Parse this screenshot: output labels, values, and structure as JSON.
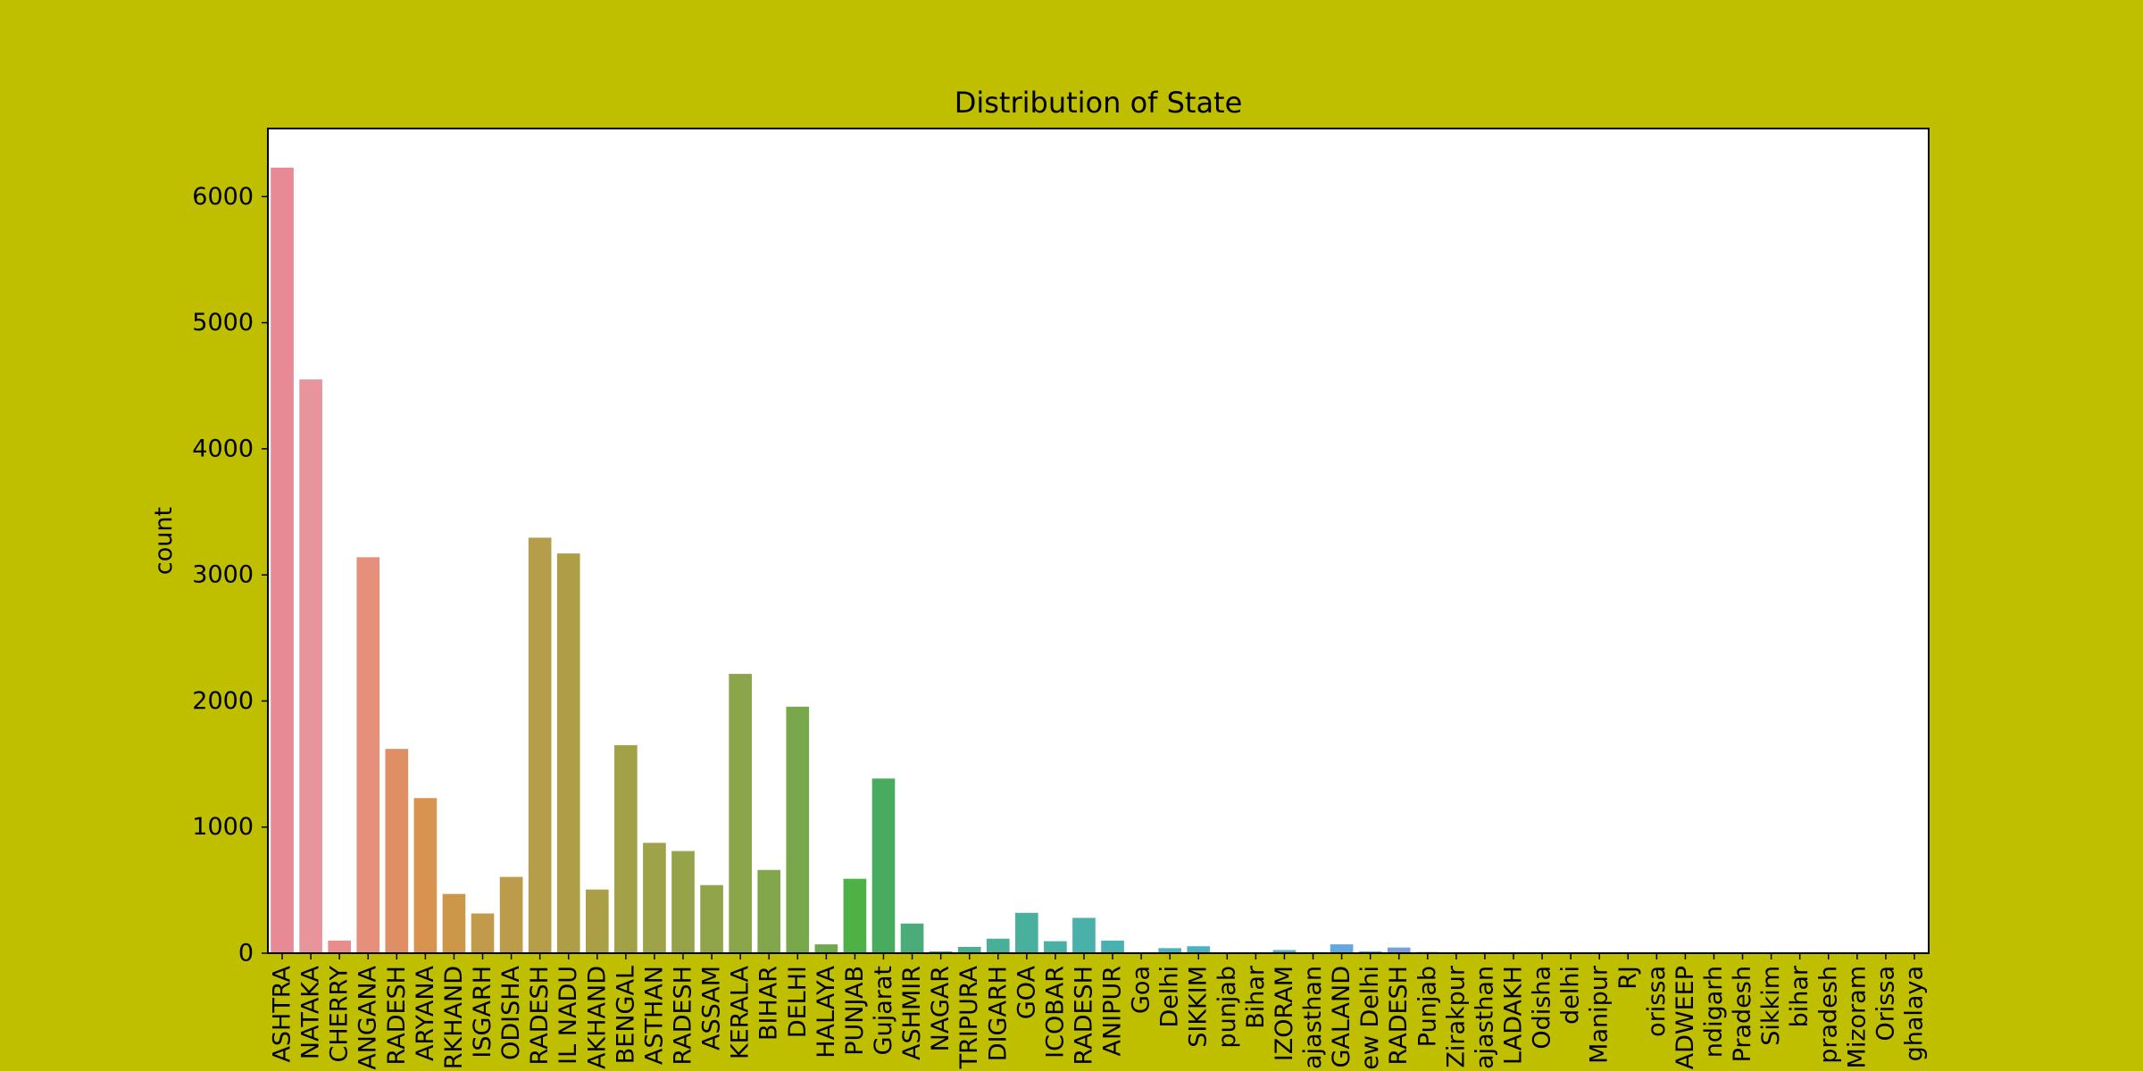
{
  "chart_data": {
    "type": "bar",
    "title": "Distribution of State",
    "xlabel": "",
    "ylabel": "count",
    "ylim": [
      0,
      6540
    ],
    "yticks": [
      0,
      1000,
      2000,
      3000,
      4000,
      5000,
      6000
    ],
    "grid": false,
    "categories": [
      "ASHTRA",
      "NATAKA",
      "CHERRY",
      "ANGANA",
      "RADESH",
      "ARYANA",
      "RKHAND",
      "ISGARH",
      "ODISHA",
      "RADESH",
      "IL NADU",
      "AKHAND",
      "BENGAL",
      "ASTHAN",
      "RADESH",
      "ASSAM",
      "KERALA",
      "BIHAR",
      "DELHI",
      "HALAYA",
      "PUNJAB",
      "Gujarat",
      "ASHMIR",
      "NAGAR",
      "TRIPURA",
      "DIGARH",
      "GOA",
      "ICOBAR",
      "RADESH",
      "ANIPUR",
      "Goa",
      "Delhi",
      "SIKKIM",
      "punjab",
      "Bihar",
      "IZORAM",
      "ajasthan",
      "GALAND",
      "ew Delhi",
      "RADESH",
      "Punjab",
      "Zirakpur",
      "ajasthan",
      "LADAKH",
      "Odisha",
      "delhi",
      "Manipur",
      "RJ",
      "orissa",
      "ADWEEP",
      "ndigarh",
      "Pradesh",
      "Sikkim",
      "bihar",
      "pradesh",
      "Mizoram",
      "Orissa",
      "ghalaya"
    ],
    "values": [
      6230,
      4550,
      100,
      3140,
      1620,
      1230,
      470,
      315,
      605,
      3295,
      3170,
      505,
      1650,
      875,
      810,
      540,
      2215,
      660,
      1955,
      70,
      590,
      1385,
      235,
      15,
      50,
      115,
      320,
      95,
      280,
      100,
      5,
      40,
      55,
      2,
      4,
      25,
      8,
      70,
      15,
      45,
      10,
      1,
      1,
      1,
      1,
      1,
      1,
      1,
      1,
      1,
      1,
      1,
      1,
      1,
      1,
      1,
      1,
      1
    ],
    "colors": [
      "#e88a96",
      "#e8949b",
      "#e88c8c",
      "#e68f7a",
      "#e08e64",
      "#d89350",
      "#cc9748",
      "#c29a4b",
      "#bb9c4b",
      "#b59d49",
      "#b09e47",
      "#aa9f47",
      "#a3a148",
      "#9ea248",
      "#97a349",
      "#91a44a",
      "#8ba54a",
      "#82a64b",
      "#79a74b",
      "#6fa94b",
      "#4eb146",
      "#48ab60",
      "#4aac78",
      "#4aad86",
      "#4aae8f",
      "#4aaf97",
      "#4ab09e",
      "#4ab0a4",
      "#4ab1aa",
      "#4ab1b0",
      "#4ab2b6",
      "#4ab2bc",
      "#4ab2c2",
      "#4ab1c8",
      "#4ab0ce",
      "#4cafd4",
      "#55acda",
      "#60a8de",
      "#6da3e1",
      "#7a9ee3",
      "#889ae4",
      "#9596e4",
      "#a292e3",
      "#ae8ee1",
      "#b98adf",
      "#c386dc",
      "#cc82d8",
      "#d47fd3",
      "#da7dce",
      "#e07bc8",
      "#e47ac2",
      "#e77abc",
      "#e97ab5",
      "#ea7aae",
      "#eb7ba7",
      "#eb7da1",
      "#eb7f9a",
      "#ea8194"
    ]
  }
}
